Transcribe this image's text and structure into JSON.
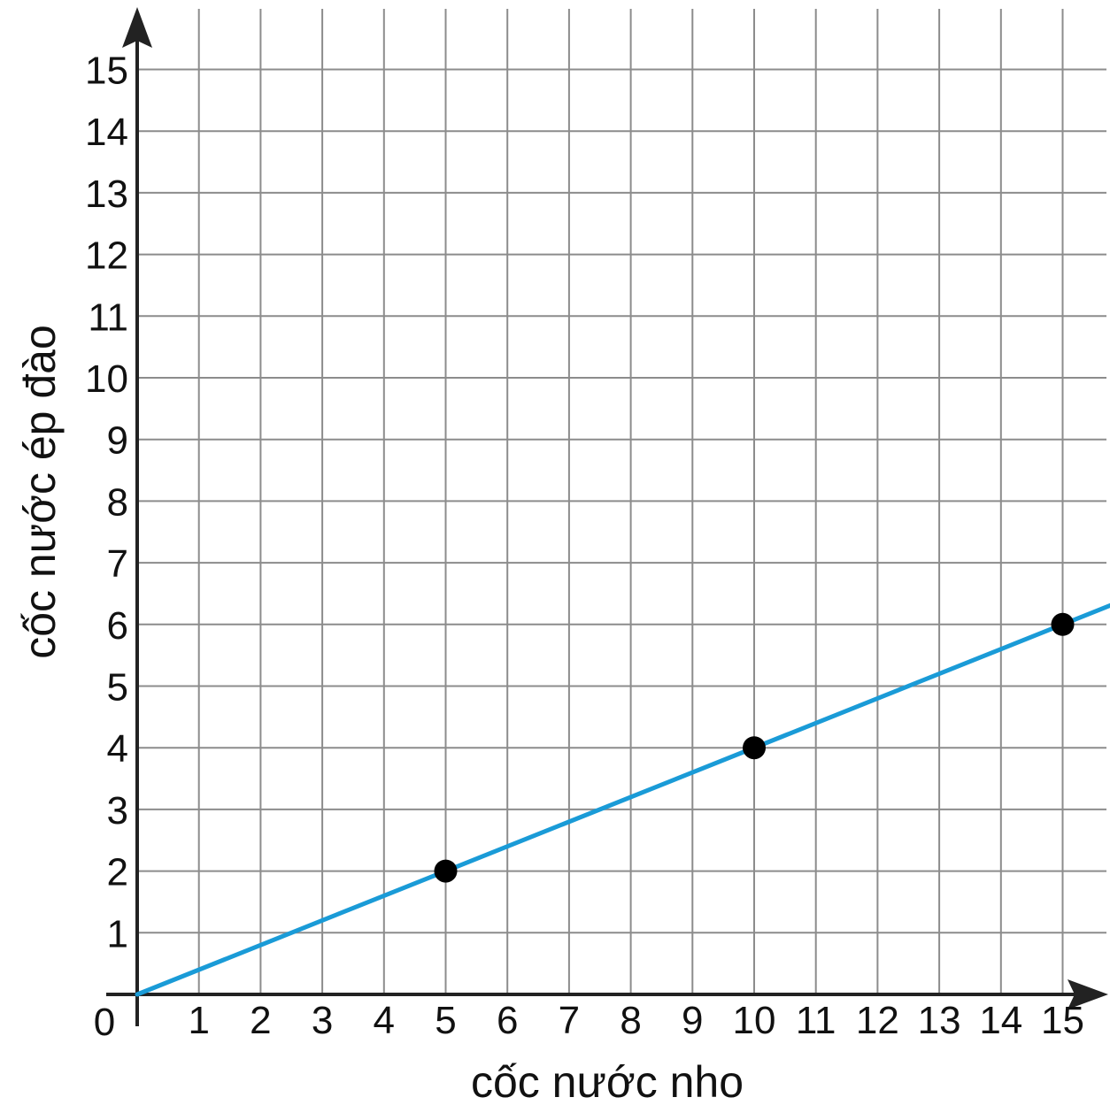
{
  "chart_data": {
    "type": "line",
    "xlabel": "cốc nước nho",
    "ylabel": "cốc nước ép đào",
    "origin_label": "0",
    "xlim": [
      0,
      15.8
    ],
    "ylim": [
      0,
      16
    ],
    "x_ticks": [
      1,
      2,
      3,
      4,
      5,
      6,
      7,
      8,
      9,
      10,
      11,
      12,
      13,
      14,
      15
    ],
    "y_ticks": [
      1,
      2,
      3,
      4,
      5,
      6,
      7,
      8,
      9,
      10,
      11,
      12,
      13,
      14,
      15
    ],
    "grid": true,
    "series": [
      {
        "line": {
          "x": [
            0,
            15.8
          ],
          "y": [
            0,
            6.32
          ]
        },
        "points": [
          {
            "x": 5,
            "y": 2
          },
          {
            "x": 10,
            "y": 4
          },
          {
            "x": 15,
            "y": 6
          }
        ]
      }
    ],
    "colors": {
      "line": "#1a9bd7",
      "points": "#000000",
      "grid": "#8c8c8c",
      "axis": "#222222"
    }
  }
}
